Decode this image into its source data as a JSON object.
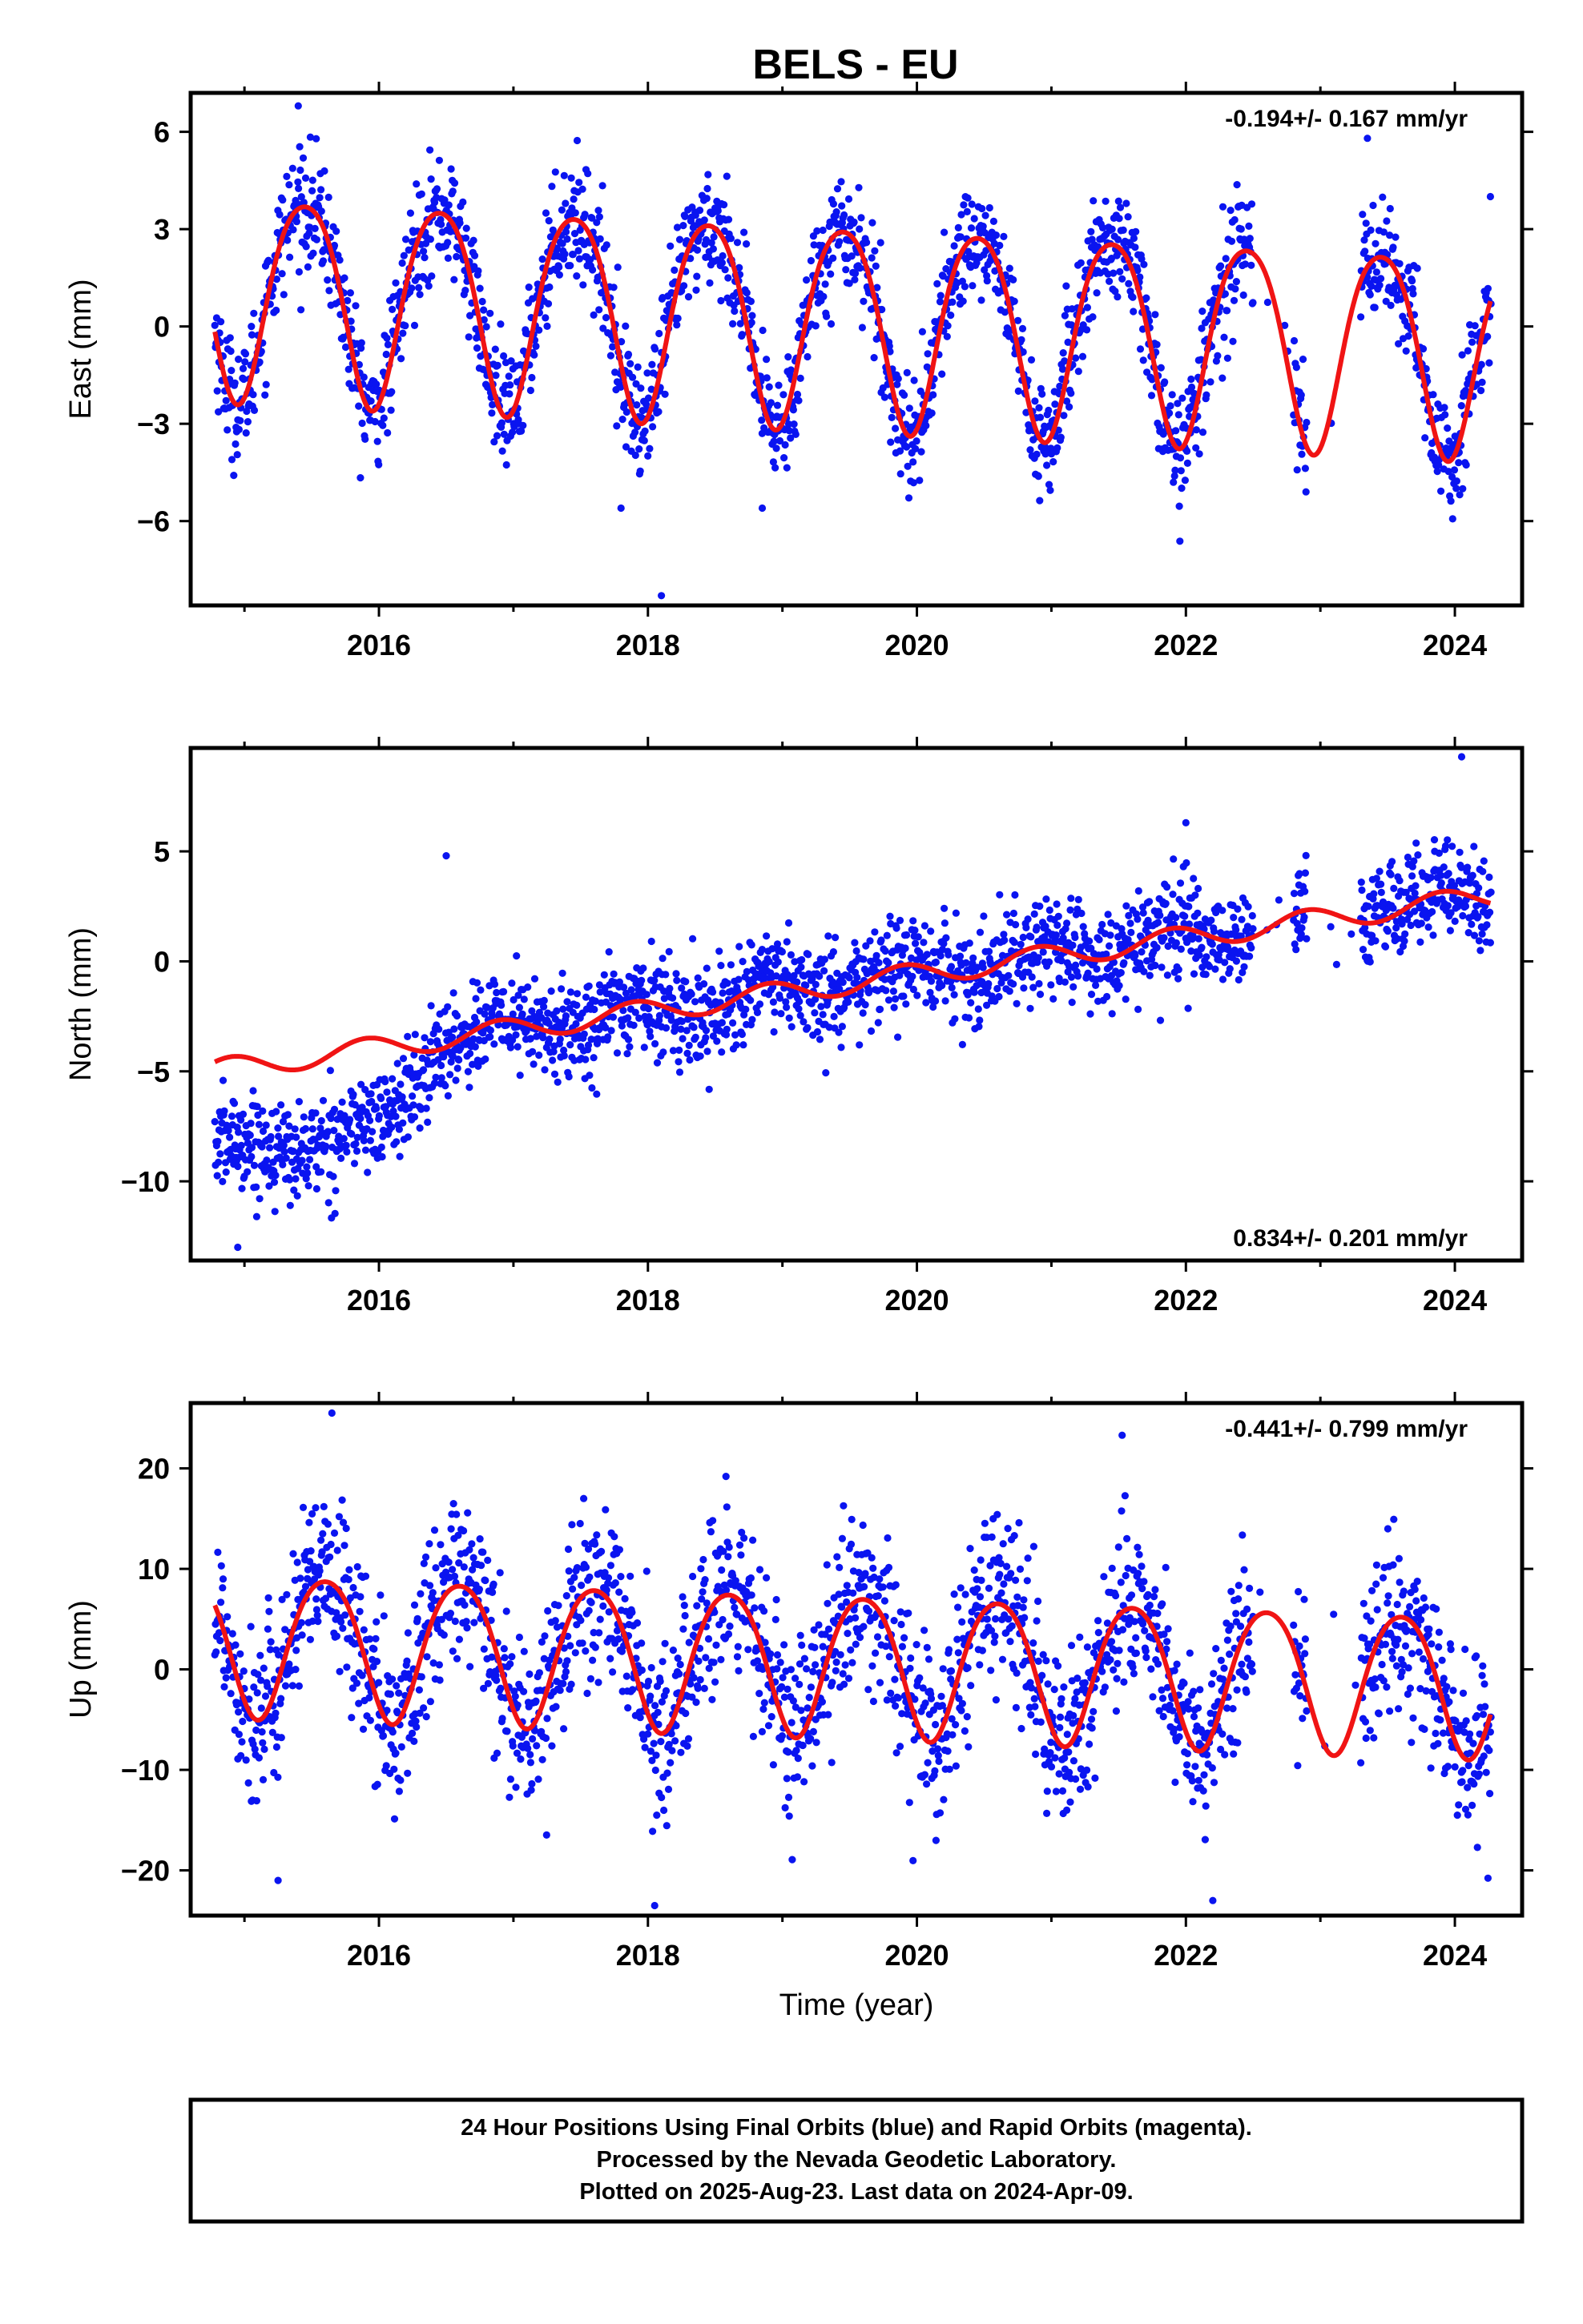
{
  "title": "BELS - EU",
  "colors": {
    "data": "#0a14f0",
    "model": "#f01414",
    "frame": "#000000"
  },
  "chart_data": [
    {
      "type": "scatter",
      "component": "east",
      "ylabel": "East (mm)",
      "rate_text": "-0.194+/- 0.167 mm/yr",
      "rate_position": "top-right",
      "xlim": [
        2014.6,
        2024.5
      ],
      "ylim": [
        -8.6,
        7.2
      ],
      "xticks": [
        2016,
        2018,
        2020,
        2022,
        2024
      ],
      "yticks": [
        -6,
        -3,
        0,
        3,
        6
      ],
      "yticklabels": [
        "−6",
        "−3",
        "0",
        "3",
        "6"
      ],
      "model": {
        "mean_at_2019_5": 0.2,
        "rate": -0.194,
        "annual_amp": 3.1,
        "annual_peak": 0.45,
        "semi_amp": 0.4,
        "semi_peak": 0.2
      },
      "scatter_sd": 0.9,
      "outliers": [
        [
          2015.4,
          6.8
        ],
        [
          2018.1,
          -8.3
        ],
        [
          2017.8,
          -5.6
        ],
        [
          2018.85,
          -5.6
        ],
        [
          2023.35,
          5.8
        ]
      ],
      "gaps": [
        [
          2022.5,
          2022.8
        ],
        [
          2022.9,
          2023.3
        ]
      ],
      "x_range": [
        2014.78,
        2024.27
      ]
    },
    {
      "type": "scatter",
      "component": "north",
      "ylabel": "North (mm)",
      "rate_text": "0.834+/- 0.201 mm/yr",
      "rate_position": "bottom-right",
      "xlim": [
        2014.6,
        2024.5
      ],
      "ylim": [
        -13.6,
        9.7
      ],
      "xticks": [
        2016,
        2018,
        2020,
        2022,
        2024
      ],
      "yticks": [
        -10,
        -5,
        0,
        5
      ],
      "yticklabels": [
        "−10",
        "−5",
        "0",
        "5"
      ],
      "model": {
        "mean_at_2019_5": -1.0,
        "rate": 0.834,
        "annual_amp": 0.5,
        "annual_peak": 0.9,
        "semi_amp": 0.0,
        "semi_peak": 0.0
      },
      "scatter_sd": 1.1,
      "outliers": [
        [
          2016.5,
          4.8
        ],
        [
          2014.95,
          -13.0
        ],
        [
          2023.85,
          5.0
        ],
        [
          2024.05,
          9.3
        ],
        [
          2022.0,
          6.3
        ]
      ],
      "gaps": [
        [
          2022.5,
          2022.8
        ],
        [
          2022.9,
          2023.3
        ]
      ],
      "x_range": [
        2014.78,
        2024.27
      ]
    },
    {
      "type": "scatter",
      "component": "up",
      "ylabel": "Up (mm)",
      "xlabel": "Time (year)",
      "rate_text": "-0.441+/- 0.799 mm/yr",
      "rate_position": "top-right",
      "xlim": [
        2014.6,
        2024.5
      ],
      "ylim": [
        -24.5,
        26.5
      ],
      "xticks": [
        2016,
        2018,
        2020,
        2022,
        2024
      ],
      "yticks": [
        -20,
        -10,
        0,
        10,
        20
      ],
      "yticklabels": [
        "−20",
        "−10",
        "0",
        "10",
        "20"
      ],
      "model": {
        "mean_at_2019_5": 0.8,
        "rate": -0.441,
        "annual_amp": 7.0,
        "annual_peak": 0.6,
        "semi_amp": 0.8,
        "semi_peak": 0.35
      },
      "scatter_sd": 4.3,
      "outliers": [
        [
          2015.65,
          25.5
        ],
        [
          2018.05,
          -23.5
        ],
        [
          2018.58,
          19.2
        ],
        [
          2022.2,
          -23.0
        ],
        [
          2015.25,
          -21.0
        ]
      ],
      "gaps": [
        [
          2022.5,
          2022.8
        ],
        [
          2022.9,
          2023.3
        ]
      ],
      "x_range": [
        2014.78,
        2024.27
      ]
    }
  ],
  "xtick_labels": [
    "2016",
    "2018",
    "2020",
    "2022",
    "2024"
  ],
  "footer": {
    "line1": "24 Hour Positions Using Final Orbits (blue) and Rapid Orbits (magenta).",
    "line2": "Processed by the Nevada Geodetic Laboratory.",
    "line3": "Plotted on 2025-Aug-23. Last data on 2024-Apr-09."
  }
}
